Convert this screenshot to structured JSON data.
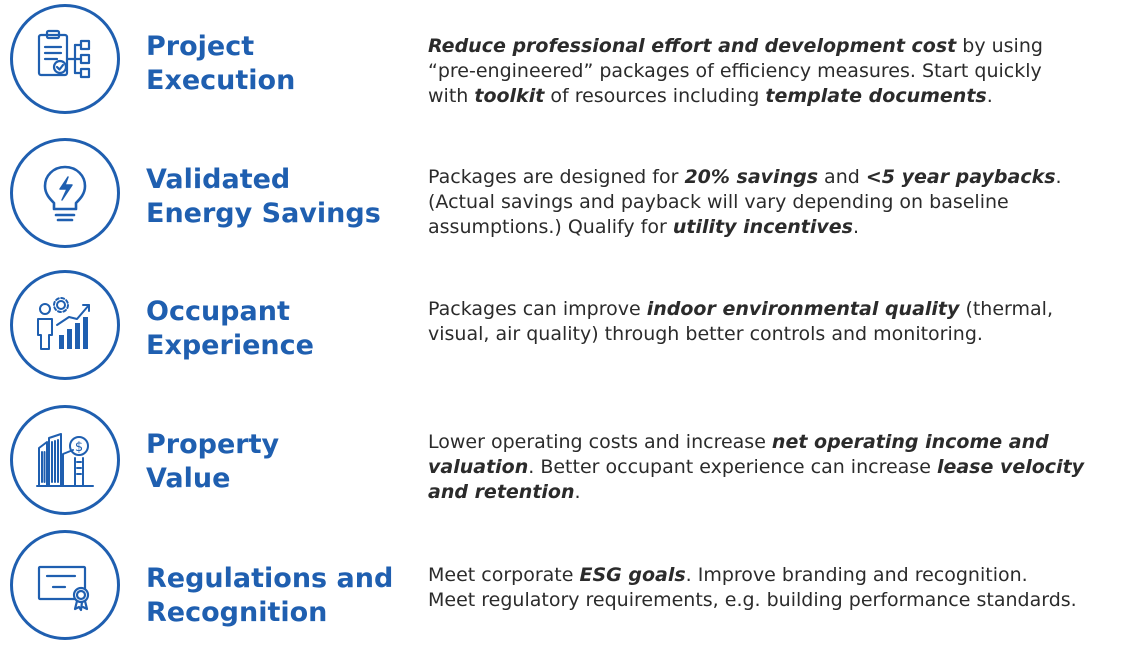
{
  "rows": [
    {
      "title1": "Project",
      "title2": "Execution",
      "icon": "clipboard-flowchart-icon",
      "lines": [
        [
          {
            "t": "Reduce professional effort and development cost",
            "b": true
          },
          {
            "t": " by using"
          }
        ],
        [
          {
            "t": "“pre-engineered” packages of efficiency measures. Start quickly"
          }
        ],
        [
          {
            "t": "with "
          },
          {
            "t": "toolkit",
            "b": true
          },
          {
            "t": " of resources including "
          },
          {
            "t": "template documents",
            "b": true
          },
          {
            "t": "."
          }
        ]
      ]
    },
    {
      "title1": "Validated",
      "title2": "Energy Savings",
      "icon": "lightbulb-icon",
      "lines": [
        [
          {
            "t": "Packages are designed for "
          },
          {
            "t": "20% savings",
            "b": true
          },
          {
            "t": " and "
          },
          {
            "t": "<5 year paybacks",
            "b": true
          },
          {
            "t": "."
          }
        ],
        [
          {
            "t": "(Actual savings and payback will vary depending on baseline"
          }
        ],
        [
          {
            "t": "assumptions.) Qualify for "
          },
          {
            "t": "utility incentives",
            "b": true
          },
          {
            "t": "."
          }
        ]
      ]
    },
    {
      "title1": "Occupant",
      "title2": "Experience",
      "icon": "person-growth-chart-icon",
      "lines": [
        [
          {
            "t": "Packages can improve "
          },
          {
            "t": "indoor environmental quality",
            "b": true
          },
          {
            "t": " (thermal,"
          }
        ],
        [
          {
            "t": "visual, air quality) through better controls and monitoring."
          }
        ]
      ]
    },
    {
      "title1": "Property",
      "title2": "Value",
      "icon": "buildings-dollar-icon",
      "lines": [
        [
          {
            "t": "Lower operating costs and increase "
          },
          {
            "t": "net operating income and",
            "b": true
          }
        ],
        [
          {
            "t": "valuation",
            "b": true
          },
          {
            "t": ". Better occupant experience can increase "
          },
          {
            "t": "lease velocity",
            "b": true
          }
        ],
        [
          {
            "t": "and retention",
            "b": true
          },
          {
            "t": "."
          }
        ]
      ]
    },
    {
      "title1": "Regulations and",
      "title2": "Recognition",
      "icon": "certificate-icon",
      "lines": [
        [
          {
            "t": "Meet corporate "
          },
          {
            "t": "ESG goals",
            "b": true
          },
          {
            "t": ". Improve branding and recognition."
          }
        ],
        [
          {
            "t": "Meet regulatory requirements, e.g. building performance standards."
          }
        ]
      ]
    }
  ],
  "colors": {
    "accent": "#1f5fb0",
    "text": "#2b2b2b"
  }
}
